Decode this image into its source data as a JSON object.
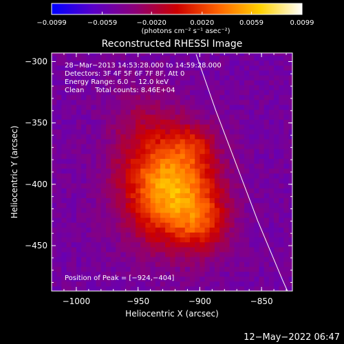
{
  "chart_data": {
    "type": "heatmap",
    "title": "Reconstructed RHESSI Image",
    "xlabel": "Heliocentric X (arcsec)",
    "ylabel": "Heliocentric Y (arcsec)",
    "xlim": [
      -1020,
      -825
    ],
    "ylim": [
      -487,
      -293
    ],
    "x_ticks": [
      -1000,
      -950,
      -900,
      -850
    ],
    "x_tick_labels": [
      "−1000",
      "−950",
      "−900",
      "−850"
    ],
    "y_ticks": [
      -300,
      -350,
      -400,
      -450
    ],
    "y_tick_labels": [
      "−300",
      "−350",
      "−400",
      "−450"
    ],
    "colorbar": {
      "range": [
        -0.0099,
        0.0099
      ],
      "ticks": [
        -0.0099,
        -0.0059,
        -0.002,
        0.002,
        0.0059,
        0.0099
      ],
      "tick_labels": [
        "−0.0099",
        "−0.0059",
        "−0.0020",
        "0.0020",
        "0.0059",
        "0.0099"
      ],
      "unit_label": "(photons cm⁻² s⁻¹ asec⁻²)",
      "colors": [
        "#0000ff",
        "#5a00c8",
        "#8c0078",
        "#cc0000",
        "#ff6400",
        "#ffd200",
        "#ffffff"
      ]
    },
    "annotations": [
      "28−Mar−2013 14:53:28.000 to 14:59:28.000",
      "Detectors: 3F 4F 5F 6F 7F 8F, Att 0",
      "Energy Range: 6.0 − 12.0 keV",
      "Clean     Total counts: 8.46E+04"
    ],
    "peak_label": "Position of Peak = [−924,−404]",
    "peak": [
      -924,
      -404
    ],
    "limb_points": [
      [
        -903,
        -294
      ],
      [
        -887,
        -340
      ],
      [
        -870,
        -385
      ],
      [
        -853,
        -430
      ],
      [
        -833,
        -478
      ],
      [
        -829,
        -487
      ]
    ],
    "sources": [
      {
        "x": -924,
        "y": -404,
        "sx": 26,
        "sy": 30,
        "amp": 0.0104
      },
      {
        "x": -905,
        "y": -367,
        "sx": 12,
        "sy": 12,
        "amp": 0.0026
      },
      {
        "x": -898,
        "y": -432,
        "sx": 15,
        "sy": 17,
        "amp": 0.0038
      },
      {
        "x": -947,
        "y": -352,
        "sx": 20,
        "sy": 26,
        "amp": 0.002
      }
    ],
    "background_level": -0.0049,
    "footer": "12−May−2022 06:47"
  }
}
